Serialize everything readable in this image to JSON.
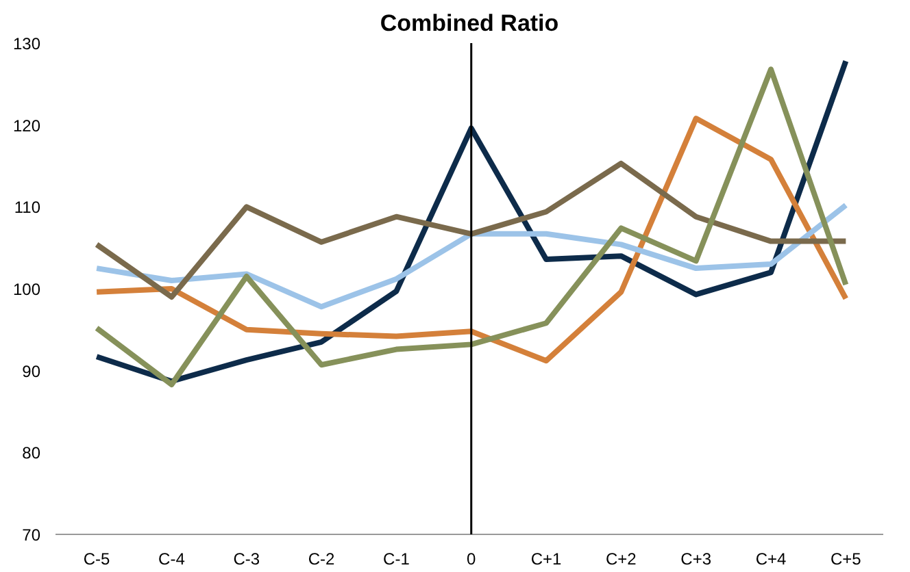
{
  "chart_data": {
    "type": "line",
    "title": "Combined Ratio",
    "categories": [
      "C-5",
      "C-4",
      "C-3",
      "C-2",
      "C-1",
      "0",
      "C+1",
      "C+2",
      "C+3",
      "C+4",
      "C+5"
    ],
    "series": [
      {
        "color": "#0d2b4a",
        "values": [
          91.7,
          88.7,
          91.3,
          93.5,
          99.7,
          119.6,
          103.6,
          104.0,
          99.3,
          102.0,
          127.8
        ]
      },
      {
        "color": "#d4803a",
        "values": [
          99.6,
          100.0,
          95.0,
          94.5,
          94.2,
          94.8,
          91.2,
          99.6,
          120.8,
          115.8,
          98.8
        ]
      },
      {
        "color": "#9cc3e8",
        "values": [
          102.5,
          101.0,
          101.8,
          97.8,
          101.2,
          106.7,
          106.7,
          105.4,
          102.5,
          103.0,
          110.2
        ]
      },
      {
        "color": "#7a6a4c",
        "values": [
          105.4,
          99.0,
          110.0,
          105.7,
          108.8,
          106.7,
          109.4,
          115.3,
          108.8,
          105.8,
          105.8
        ]
      },
      {
        "color": "#86915a",
        "values": [
          95.2,
          88.3,
          101.5,
          90.7,
          92.6,
          93.2,
          95.8,
          107.4,
          103.4,
          126.8,
          100.5
        ]
      }
    ],
    "ylim": [
      70,
      130
    ],
    "yticks": [
      70,
      80,
      90,
      100,
      110,
      120,
      130
    ],
    "ref_lines": [
      {
        "axis": "x",
        "value": "0",
        "color": "#000000"
      }
    ],
    "grid": false
  }
}
